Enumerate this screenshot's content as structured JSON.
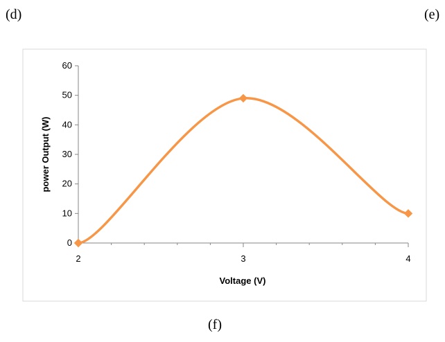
{
  "panel_labels": {
    "left": "(d)",
    "right": "(e)",
    "bottom": "(f)"
  },
  "chart_data": {
    "type": "line",
    "xlabel": "Voltage (V)",
    "ylabel": "power Output (W)",
    "x": [
      2,
      3,
      4
    ],
    "series": [
      {
        "values": [
          0,
          49,
          10
        ],
        "color": "#F79646",
        "marker": "diamond",
        "smooth": true
      }
    ],
    "xlim": [
      2,
      4
    ],
    "ylim": [
      0,
      60
    ],
    "xticks": [
      2,
      3,
      4
    ],
    "yticks": [
      0,
      10,
      20,
      30,
      40,
      50,
      60
    ],
    "grid": false,
    "legend": "none"
  }
}
